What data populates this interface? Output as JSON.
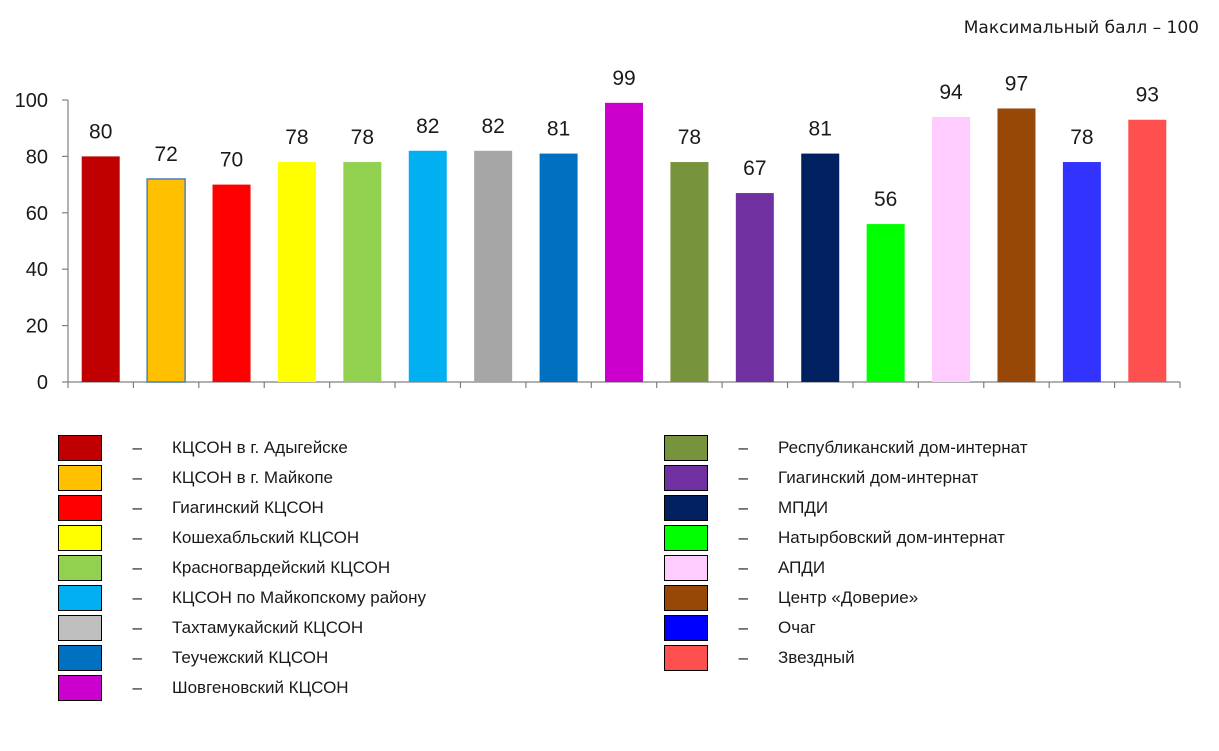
{
  "note": "Максимальный балл – 100",
  "chart_data": {
    "type": "bar",
    "title": "",
    "xlabel": "",
    "ylabel": "",
    "ylim": [
      0,
      100
    ],
    "yticks": [
      0,
      20,
      40,
      60,
      80,
      100
    ],
    "grid": false,
    "legend_position": "bottom",
    "categories": [
      "КЦСОН в г. Адыгейске",
      "КЦСОН в г. Майкопе",
      "Гиагинский КЦСОН",
      "Кошехабльский КЦСОН",
      "Красногвардейский КЦСОН",
      "КЦСОН по Майкопскому району",
      "Тахтамукайский КЦСОН",
      "Теучежский КЦСОН",
      "Шовгеновский КЦСОН",
      "Республиканский дом-интернат",
      "Гиагинский дом-интернат",
      "МПДИ",
      "Натырбовский дом-интернат",
      "АПДИ",
      "Центр «Доверие»",
      "Очаг",
      "Звездный"
    ],
    "values": [
      80,
      72,
      70,
      78,
      78,
      82,
      82,
      81,
      99,
      78,
      67,
      81,
      56,
      94,
      97,
      78,
      93
    ],
    "colors": [
      "#C00000",
      "#FFC000",
      "#FF0000",
      "#FFFF00",
      "#92D050",
      "#00B0F0",
      "#A6A6A6",
      "#0070C0",
      "#CC00CC",
      "#77933C",
      "#7030A0",
      "#002060",
      "#00FF00",
      "#FFCCFF",
      "#974706",
      "#3333FF",
      "#FF5050"
    ],
    "legend_colors": [
      "#C00000",
      "#FFC000",
      "#FF0000",
      "#FFFF00",
      "#92D050",
      "#00B0F0",
      "#BFBFBF",
      "#0070C0",
      "#CC00CC",
      "#77933C",
      "#7030A0",
      "#002060",
      "#00FF00",
      "#FFCCFF",
      "#974706",
      "#0000FF",
      "#FF5050"
    ],
    "dash": "–"
  }
}
